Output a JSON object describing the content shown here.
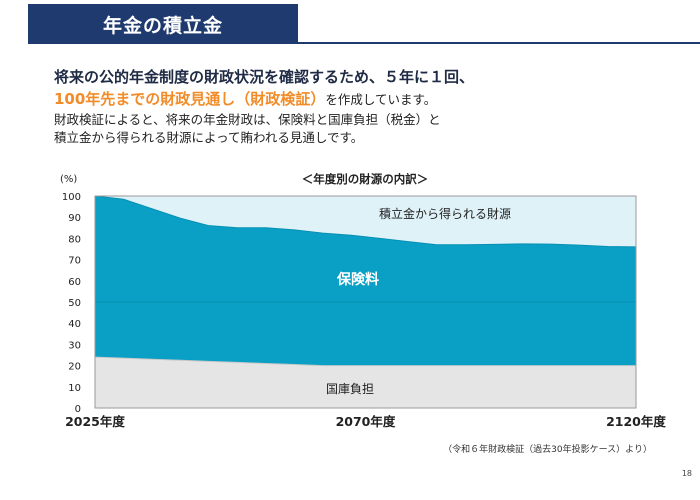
{
  "header": {
    "title": "年金の積立金"
  },
  "intro": {
    "line1": "将来の公的年金制度の財政状況を確認するため、５年に１回、",
    "line2_highlight": "100年先までの財政見通し（財政検証）",
    "line2_rest": "を作成しています。",
    "line3": "財政検証によると、将来の年金財政は、保険料と国庫負担（税金）と",
    "line4": "積立金から得られる財源によって賄われる見通しです。"
  },
  "chart_data": {
    "type": "area",
    "title": "＜年度別の財源の内訳＞",
    "ylabel": "(%)",
    "ylim": [
      0,
      100
    ],
    "yticks": [
      "0",
      "10",
      "20",
      "30",
      "40",
      "50",
      "60",
      "70",
      "80",
      "90",
      "100"
    ],
    "xticks": [
      "2025年度",
      "2070年度",
      "2120年度"
    ],
    "x": [
      2025,
      2030,
      2035,
      2040,
      2045,
      2050,
      2055,
      2060,
      2065,
      2070,
      2075,
      2080,
      2085,
      2090,
      2095,
      2100,
      2105,
      2110,
      2115,
      2120
    ],
    "series": [
      {
        "name": "国庫負担",
        "values": [
          24,
          23.5,
          23,
          22.5,
          22,
          21.5,
          21,
          20.5,
          20,
          20,
          20,
          20,
          20,
          20,
          20,
          20,
          20,
          20,
          20,
          20
        ]
      },
      {
        "name": "保険料",
        "values": [
          76,
          75,
          71,
          67,
          64,
          63.5,
          64,
          63.5,
          62.5,
          61.5,
          60,
          58.5,
          57,
          57,
          57.2,
          57.4,
          57.3,
          56.8,
          56.2,
          56
        ]
      },
      {
        "name": "積立金から得られる財源",
        "values": [
          0,
          1.5,
          6,
          10.5,
          14,
          15,
          15,
          16,
          17.5,
          18.5,
          20,
          21.5,
          23,
          23,
          22.8,
          22.6,
          22.7,
          23.2,
          23.8,
          24
        ]
      }
    ],
    "colors": {
      "national": "#e5e5e5",
      "premium": "#0aa0c6",
      "reserve": "#dff2f8"
    }
  },
  "footnote": "（令和６年財政検証（過去30年投影ケース）より）",
  "page_number": "18"
}
